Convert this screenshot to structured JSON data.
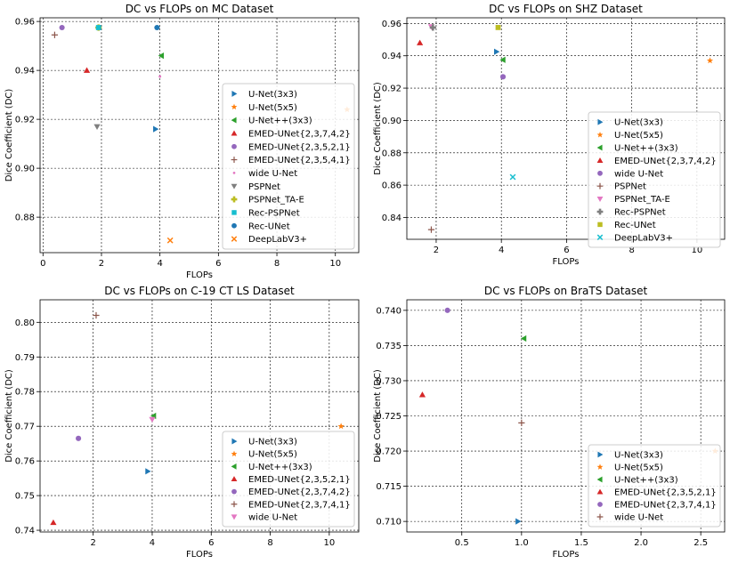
{
  "chart_data": [
    {
      "type": "scatter",
      "title": "DC vs FLOPs on MC Dataset",
      "xlabel": "FLOPs",
      "ylabel": "Dice Coefficient (DC)",
      "xlim": [
        -0.1,
        10.8
      ],
      "ylim": [
        0.8655,
        0.9615
      ],
      "xticks": [
        0,
        2,
        4,
        6,
        8,
        10
      ],
      "yticks": [
        0.88,
        0.9,
        0.92,
        0.94,
        0.96
      ],
      "xtick_labels": [
        "0",
        "2",
        "4",
        "6",
        "8",
        "10"
      ],
      "ytick_labels": [
        "0.88",
        "0.90",
        "0.92",
        "0.94",
        "0.96"
      ],
      "grid": true,
      "legend": "center-right",
      "series": [
        {
          "name": "U-Net(3x3)",
          "marker": "triangle-right",
          "color": "#1f77b4",
          "points": [
            [
              3.85,
              0.916
            ]
          ]
        },
        {
          "name": "U-Net(5x5)",
          "marker": "star",
          "color": "#ff7f0e",
          "points": [
            [
              10.4,
              0.924
            ]
          ]
        },
        {
          "name": "U-Net++(3x3)",
          "marker": "triangle-left",
          "color": "#2ca02c",
          "points": [
            [
              4.05,
              0.946
            ]
          ]
        },
        {
          "name": "EMED-UNet{2,3,7,4,2}",
          "marker": "triangle-up",
          "color": "#d62728",
          "points": [
            [
              1.5,
              0.94
            ]
          ]
        },
        {
          "name": "EMED-UNet{2,3,5,2,1}",
          "marker": "circle",
          "color": "#9467bd",
          "points": [
            [
              0.65,
              0.9575
            ]
          ]
        },
        {
          "name": "EMED-UNet{2,3,5,4,1}",
          "marker": "plus",
          "color": "#8c564b",
          "points": [
            [
              0.4,
              0.9545
            ]
          ]
        },
        {
          "name": "wide U-Net",
          "marker": "point",
          "color": "#e377c2",
          "points": [
            [
              4.0,
              0.9375
            ]
          ]
        },
        {
          "name": "PSPNet",
          "marker": "triangle-down",
          "color": "#7f7f7f",
          "points": [
            [
              1.85,
              0.917
            ]
          ]
        },
        {
          "name": "PSPNet_TA-E",
          "marker": "plus-thick",
          "color": "#bcbd22",
          "points": [
            [
              1.9,
              0.9575
            ]
          ]
        },
        {
          "name": "Rec-PSPNet",
          "marker": "square",
          "color": "#17becf",
          "points": [
            [
              1.9,
              0.9575
            ]
          ]
        },
        {
          "name": "Rec-UNet",
          "marker": "circle",
          "color": "#1f77b4",
          "points": [
            [
              3.9,
              0.9575
            ]
          ]
        },
        {
          "name": "DeepLabV3+",
          "marker": "x",
          "color": "#ff7f0e",
          "points": [
            [
              4.35,
              0.8705
            ]
          ]
        }
      ]
    },
    {
      "type": "scatter",
      "title": "DC vs FLOPs on SHZ Dataset",
      "xlabel": "FLOPs",
      "ylabel": "Dice Coefficient (DC)",
      "xlim": [
        1.1,
        10.85
      ],
      "ylim": [
        0.8265,
        0.9635
      ],
      "xticks": [
        2,
        4,
        6,
        8,
        10
      ],
      "yticks": [
        0.84,
        0.86,
        0.88,
        0.9,
        0.92,
        0.94,
        0.96
      ],
      "xtick_labels": [
        "2",
        "4",
        "6",
        "8",
        "10"
      ],
      "ytick_labels": [
        "0.84",
        "0.86",
        "0.88",
        "0.90",
        "0.92",
        "0.94",
        "0.96"
      ],
      "grid": true,
      "legend": "lower-right",
      "series": [
        {
          "name": "U-Net(3x3)",
          "marker": "triangle-right",
          "color": "#1f77b4",
          "points": [
            [
              3.85,
              0.9425
            ]
          ]
        },
        {
          "name": "U-Net(5x5)",
          "marker": "star",
          "color": "#ff7f0e",
          "points": [
            [
              10.4,
              0.937
            ]
          ]
        },
        {
          "name": "U-Net++(3x3)",
          "marker": "triangle-left",
          "color": "#2ca02c",
          "points": [
            [
              4.05,
              0.9375
            ]
          ]
        },
        {
          "name": "EMED-UNet{2,3,7,4,2}",
          "marker": "triangle-up",
          "color": "#d62728",
          "points": [
            [
              1.5,
              0.948
            ]
          ]
        },
        {
          "name": "wide U-Net",
          "marker": "circle",
          "color": "#9467bd",
          "points": [
            [
              4.05,
              0.927
            ]
          ]
        },
        {
          "name": "PSPNet",
          "marker": "plus",
          "color": "#8c564b",
          "points": [
            [
              1.85,
              0.8325
            ]
          ]
        },
        {
          "name": "PSPNet_TA-E",
          "marker": "triangle-down",
          "color": "#e377c2",
          "points": [
            [
              1.85,
              0.958
            ]
          ]
        },
        {
          "name": "Rec-PSPNet",
          "marker": "plus-thick",
          "color": "#7f7f7f",
          "points": [
            [
              1.9,
              0.9575
            ]
          ]
        },
        {
          "name": "Rec-UNet",
          "marker": "square",
          "color": "#bcbd22",
          "points": [
            [
              3.9,
              0.9575
            ]
          ]
        },
        {
          "name": "DeepLabV3+",
          "marker": "x",
          "color": "#17becf",
          "points": [
            [
              4.35,
              0.865
            ]
          ]
        }
      ]
    },
    {
      "type": "scatter",
      "title": "DC vs FLOPs on C-19 CT LS Dataset",
      "xlabel": "FLOPs",
      "ylabel": "Dice Coefficient (DC)",
      "xlim": [
        0.2,
        11.0
      ],
      "ylim": [
        0.7395,
        0.8065
      ],
      "xticks": [
        2,
        4,
        6,
        8,
        10
      ],
      "yticks": [
        0.74,
        0.75,
        0.76,
        0.77,
        0.78,
        0.79,
        0.8
      ],
      "xtick_labels": [
        "2",
        "4",
        "6",
        "8",
        "10"
      ],
      "ytick_labels": [
        "0.74",
        "0.75",
        "0.76",
        "0.77",
        "0.78",
        "0.79",
        "0.80"
      ],
      "grid": true,
      "legend": "lower-right",
      "series": [
        {
          "name": "U-Net(3x3)",
          "marker": "triangle-right",
          "color": "#1f77b4",
          "points": [
            [
              3.85,
              0.757
            ]
          ]
        },
        {
          "name": "U-Net(5x5)",
          "marker": "star",
          "color": "#ff7f0e",
          "points": [
            [
              10.4,
              0.77
            ]
          ]
        },
        {
          "name": "U-Net++(3x3)",
          "marker": "triangle-left",
          "color": "#2ca02c",
          "points": [
            [
              4.05,
              0.773
            ]
          ]
        },
        {
          "name": "EMED-UNet{2,3,5,2,1}",
          "marker": "triangle-up",
          "color": "#d62728",
          "points": [
            [
              0.65,
              0.7422
            ]
          ]
        },
        {
          "name": "EMED-UNet{2,3,7,4,2}",
          "marker": "circle",
          "color": "#9467bd",
          "points": [
            [
              1.5,
              0.7665
            ]
          ]
        },
        {
          "name": "EMED-UNet{2,3,7,4,1}",
          "marker": "plus",
          "color": "#8c564b",
          "points": [
            [
              2.1,
              0.802
            ]
          ]
        },
        {
          "name": "wide U-Net",
          "marker": "triangle-down",
          "color": "#e377c2",
          "points": [
            [
              4.0,
              0.772
            ]
          ]
        }
      ]
    },
    {
      "type": "scatter",
      "title": "DC vs FLOPs on BraTS Dataset",
      "xlabel": "FLOPs",
      "ylabel": "Dice Coefficient (DC)",
      "xlim": [
        0.04,
        2.7
      ],
      "ylim": [
        0.7085,
        0.7415
      ],
      "xticks": [
        0.5,
        1.0,
        1.5,
        2.0,
        2.5
      ],
      "yticks": [
        0.71,
        0.715,
        0.72,
        0.725,
        0.73,
        0.735,
        0.74
      ],
      "xtick_labels": [
        "0.5",
        "1.0",
        "1.5",
        "2.0",
        "2.5"
      ],
      "ytick_labels": [
        "0.710",
        "0.715",
        "0.720",
        "0.725",
        "0.730",
        "0.735",
        "0.740"
      ],
      "grid": true,
      "legend": "lower-right",
      "series": [
        {
          "name": "U-Net(3x3)",
          "marker": "triangle-right",
          "color": "#1f77b4",
          "points": [
            [
              0.97,
              0.71
            ]
          ]
        },
        {
          "name": "U-Net(5x5)",
          "marker": "star",
          "color": "#ff7f0e",
          "points": [
            [
              2.62,
              0.72
            ]
          ]
        },
        {
          "name": "U-Net++(3x3)",
          "marker": "triangle-left",
          "color": "#2ca02c",
          "points": [
            [
              1.02,
              0.736
            ]
          ]
        },
        {
          "name": "EMED-UNet{2,3,5,2,1}",
          "marker": "triangle-up",
          "color": "#d62728",
          "points": [
            [
              0.17,
              0.728
            ]
          ]
        },
        {
          "name": "EMED-UNet{2,3,7,4,1}",
          "marker": "circle",
          "color": "#9467bd",
          "points": [
            [
              0.38,
              0.74
            ]
          ]
        },
        {
          "name": "wide U-Net",
          "marker": "plus",
          "color": "#8c564b",
          "points": [
            [
              1.0,
              0.724
            ]
          ]
        }
      ]
    }
  ]
}
